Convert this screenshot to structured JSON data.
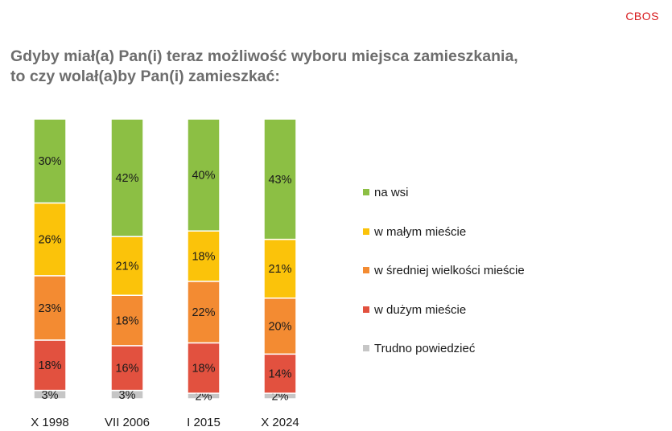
{
  "brand": "CBOS",
  "title_lines": [
    "Gdyby miał(a) Pan(i) teraz możliwość wyboru miejsca zamieszkania,",
    "to czy wolał(a)by Pan(i) zamieszkać:"
  ],
  "colors": {
    "na_wsi": "#8cbf44",
    "maly": "#fbc30a",
    "sredni": "#f38b32",
    "duzy": "#e2513f",
    "trudno": "#c6c6c6"
  },
  "chart_data": {
    "type": "bar",
    "stacked": true,
    "normalized_to": 100,
    "title": "Gdyby miał(a) Pan(i) teraz możliwość wyboru miejsca zamieszkania, to czy wolał(a)by Pan(i) zamieszkać:",
    "categories": [
      "X 1998",
      "VII 2006",
      "I 2015",
      "X 2024"
    ],
    "series": [
      {
        "name": "Trudno powiedzieć",
        "key": "trudno",
        "values": [
          3,
          3,
          2,
          2
        ],
        "labels": [
          "3%",
          "3%",
          "2%",
          "2%"
        ]
      },
      {
        "name": "w dużym mieście",
        "key": "duzy",
        "values": [
          18,
          16,
          18,
          14
        ],
        "labels": [
          "18%",
          "16%",
          "18%",
          "14%"
        ]
      },
      {
        "name": "w średniej wielkości mieście",
        "key": "sredni",
        "values": [
          23,
          18,
          22,
          20
        ],
        "labels": [
          "23%",
          "18%",
          "22%",
          "20%"
        ]
      },
      {
        "name": "w małym mieście",
        "key": "maly",
        "values": [
          26,
          21,
          18,
          21
        ],
        "labels": [
          "26%",
          "21%",
          "18%",
          "21%"
        ]
      },
      {
        "name": "na wsi",
        "key": "na_wsi",
        "values": [
          30,
          42,
          40,
          43
        ],
        "labels": [
          "30%",
          "42%",
          "40%",
          "43%"
        ]
      }
    ],
    "legend": {
      "position": "right",
      "order": [
        "na wsi",
        "w małym mieście",
        "w średniej wielkości mieście",
        "w dużym mieście",
        "Trudno powiedzieć"
      ]
    },
    "xlabel": "",
    "ylabel": ""
  }
}
